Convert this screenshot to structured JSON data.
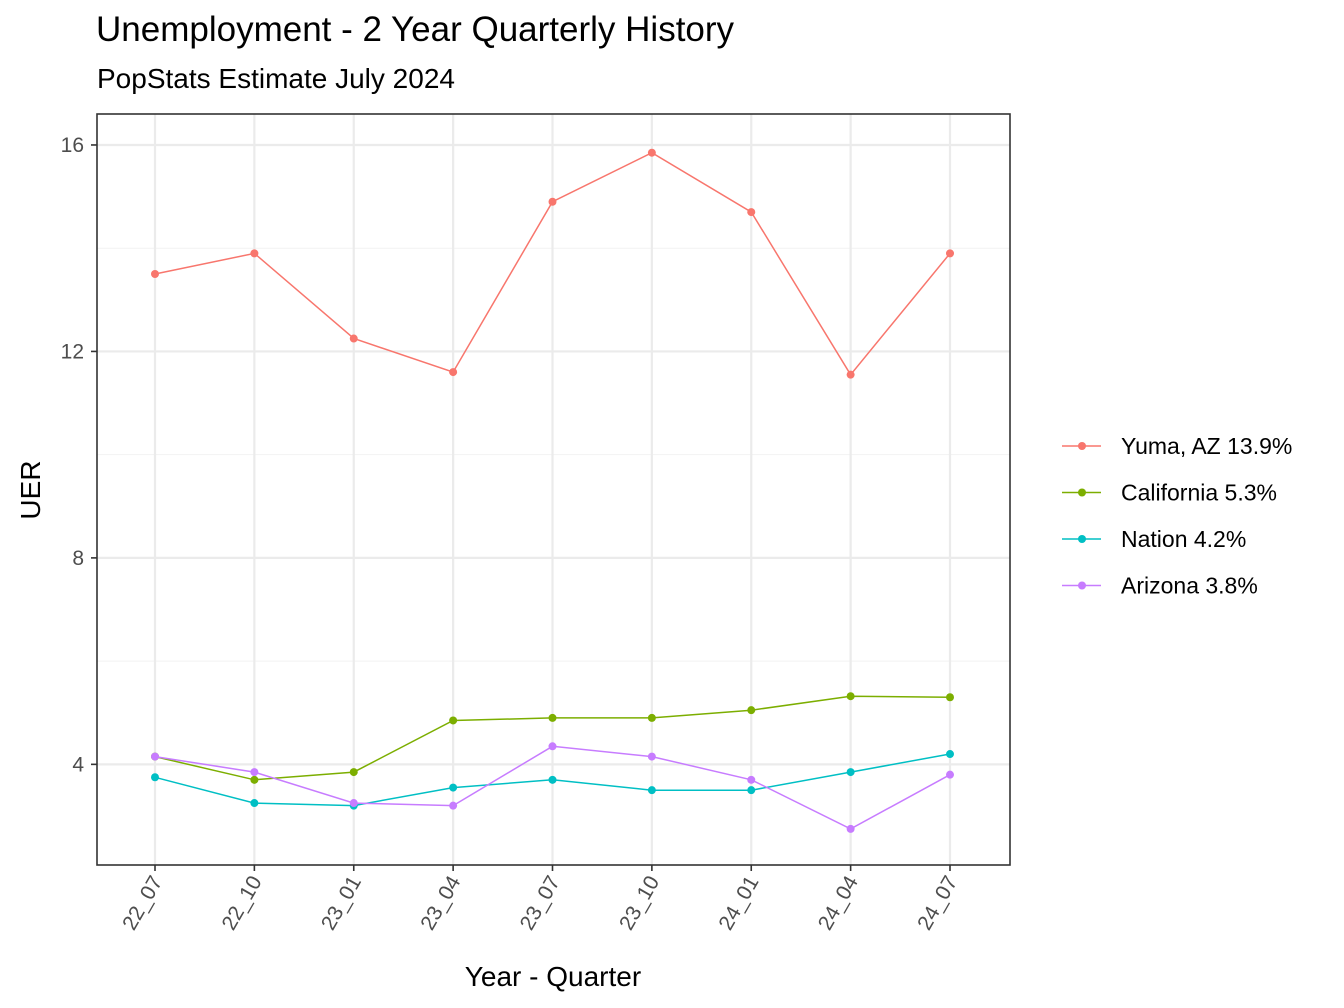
{
  "chart_data": {
    "type": "line",
    "title": "Unemployment - 2 Year Quarterly History",
    "subtitle": "PopStats Estimate July 2024",
    "xlabel": "Year - Quarter",
    "ylabel": "UER",
    "categories": [
      "22_07",
      "22_10",
      "23_01",
      "23_04",
      "23_07",
      "23_10",
      "24_01",
      "24_04",
      "24_07"
    ],
    "ylim": [
      2.05,
      16.6
    ],
    "yticks": [
      4,
      8,
      12,
      16
    ],
    "grid": true,
    "legend_position": "right",
    "series": [
      {
        "name": "Yuma, AZ 13.9%",
        "color": "#F8766D",
        "values": [
          13.5,
          13.9,
          12.25,
          11.6,
          14.9,
          15.85,
          14.7,
          11.55,
          13.9
        ]
      },
      {
        "name": "California 5.3%",
        "color": "#7CAE00",
        "values": [
          4.15,
          3.7,
          3.85,
          4.85,
          4.9,
          4.9,
          5.05,
          5.32,
          5.3
        ]
      },
      {
        "name": "Nation 4.2%",
        "color": "#00BFC4",
        "values": [
          3.75,
          3.25,
          3.2,
          3.55,
          3.7,
          3.5,
          3.5,
          3.85,
          4.2
        ]
      },
      {
        "name": "Arizona 3.8%",
        "color": "#C77CFF",
        "values": [
          4.15,
          3.85,
          3.25,
          3.2,
          4.35,
          4.15,
          3.7,
          2.75,
          3.8
        ]
      }
    ]
  }
}
